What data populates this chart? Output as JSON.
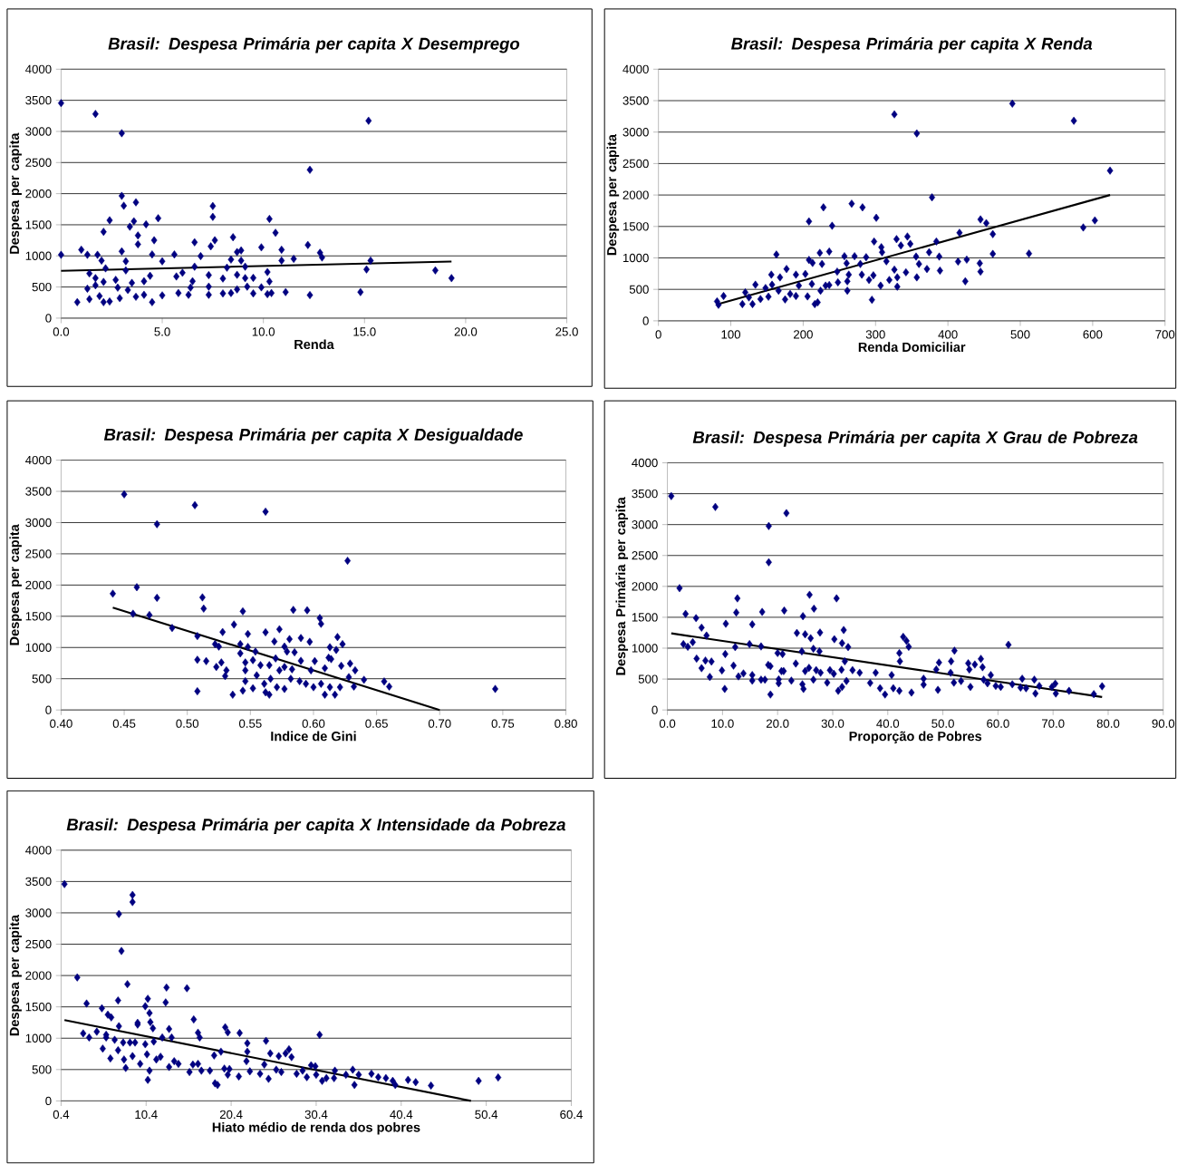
{
  "chart_data": [
    {
      "type": "scatter",
      "title": "Brasil: Despesa Primária per capita X Desemprego",
      "xlabel": "Renda",
      "ylabel": "Despesa per capita",
      "xlim": [
        0,
        25
      ],
      "ylim": [
        0,
        4000
      ],
      "xticks": [
        {
          "value": 0,
          "label": "0.0"
        },
        {
          "value": 5,
          "label": "5.0"
        },
        {
          "value": 10,
          "label": "10.0"
        },
        {
          "value": 15,
          "label": "15.0"
        },
        {
          "value": 20,
          "label": "20.0"
        },
        {
          "value": 25,
          "label": "25.0"
        }
      ],
      "yticks": [
        0,
        500,
        1000,
        1500,
        2000,
        2500,
        3000,
        3500,
        4000
      ],
      "grid": "y",
      "series": [
        {
          "marker": "diamond",
          "color": "#000080",
          "x": [
            0,
            1.7,
            3.0,
            15.2,
            12.3,
            0,
            3.0,
            3.1,
            3.7,
            7.5,
            7.5,
            2.4,
            3.6,
            4.8,
            10.3,
            2.1,
            3.4,
            4.2,
            3.8,
            3.8,
            4.6,
            10.6,
            8.5,
            7.6,
            7.4,
            6.6,
            1.0,
            1.3,
            1.8,
            3.0,
            4.5,
            5.6,
            6.9,
            9.9,
            10.9,
            12.2,
            12.8,
            12.9,
            11.5,
            8.7,
            8.9,
            2.0,
            3.2,
            5.0,
            8.4,
            8.9,
            10.9,
            15.3,
            15.1,
            18.5,
            19.3,
            14.8,
            12.3,
            11.1,
            1.4,
            2.2,
            3.2,
            4.4,
            5.7,
            6.0,
            6.6,
            7.3,
            8.2,
            8.7,
            9.1,
            9.5,
            10.2,
            10.3,
            1.7,
            2.1,
            2.7,
            3.5,
            4.1,
            6.5,
            8.0,
            9.1,
            1.3,
            1.7,
            2.8,
            3.3,
            6.4,
            7.3,
            9.2,
            9.9,
            0.8,
            1.4,
            2.1,
            2.4,
            2.9,
            3.7,
            4.1,
            4.5,
            5.0,
            5.8,
            6.3,
            7.3,
            8.0,
            8.4,
            8.7,
            9.5,
            10.2,
            10.4,
            1.9
          ],
          "values": [
            3455,
            3281,
            2971,
            3172,
            2383,
            1017,
            1964,
            1806,
            1861,
            1801,
            1627,
            1572,
            1556,
            1605,
            1594,
            1387,
            1469,
            1507,
            1328,
            1186,
            1251,
            1371,
            1300,
            1251,
            1153,
            1219,
            1099,
            1017,
            1017,
            1072,
            1023,
            1023,
            996,
            1137,
            1099,
            1175,
            1050,
            974,
            952,
            1061,
            1088,
            925,
            914,
            914,
            941,
            925,
            925,
            925,
            783,
            767,
            642,
            419,
            370,
            419,
            718,
            800,
            767,
            680,
            669,
            729,
            827,
            691,
            811,
            696,
            827,
            647,
            740,
            588,
            642,
            582,
            615,
            566,
            593,
            593,
            637,
            642,
            473,
            528,
            490,
            452,
            490,
            506,
            506,
            495,
            256,
            305,
            256,
            267,
            321,
            343,
            375,
            256,
            365,
            403,
            375,
            375,
            397,
            403,
            462,
            397,
            386,
            403,
            354
          ]
        },
        {
          "type": "line",
          "marker": "none",
          "color": "#000000",
          "x": [
            0,
            19.3
          ],
          "values": [
            760,
            910
          ]
        }
      ]
    },
    {
      "type": "scatter",
      "title": "Brasil: Despesa Primária per capita X Renda",
      "xlabel": "Renda Domiciliar",
      "ylabel": "Despesa per capita",
      "xlim": [
        0,
        700
      ],
      "ylim": [
        0,
        4000
      ],
      "xticks": [
        0,
        100,
        200,
        300,
        400,
        500,
        600,
        700
      ],
      "yticks": [
        0,
        500,
        1000,
        1500,
        2000,
        2500,
        3000,
        3500,
        4000
      ],
      "grid": "y",
      "series": [
        {
          "marker": "diamond",
          "color": "#000080",
          "x": [
            326,
            357,
            489,
            574,
            624,
            378,
            228,
            267,
            282,
            208,
            240,
            301,
            445,
            453,
            462,
            416,
            603,
            587,
            512,
            462,
            163,
            223,
            236,
            257,
            271,
            287,
            308,
            309,
            298,
            329,
            335,
            344,
            348,
            384,
            374,
            356,
            388,
            360,
            414,
            426,
            444,
            445,
            424,
            389,
            371,
            342,
            326,
            315,
            279,
            260,
            226,
            208,
            213,
            247,
            263,
            281,
            297,
            330,
            357,
            330,
            307,
            319,
            291,
            261,
            248,
            231,
            236,
            261,
            295,
            220,
            216,
            203,
            190,
            177,
            168,
            156,
            157,
            134,
            148,
            166,
            182,
            175,
            190,
            206,
            212,
            224,
            120,
            130,
            116,
            141,
            152,
            81,
            83,
            90,
            125,
            194
          ],
          "values": [
            3282,
            2979,
            3452,
            3181,
            2388,
            1963,
            1803,
            1862,
            1803,
            1580,
            1511,
            1638,
            1612,
            1553,
            1378,
            1399,
            1596,
            1484,
            1069,
            1064,
            1053,
            1080,
            1101,
            1027,
            1027,
            1011,
            1170,
            1090,
            1261,
            1298,
            1197,
            1340,
            1223,
            1261,
            1090,
            1021,
            1021,
            904,
            941,
            973,
            915,
            782,
            628,
            798,
            824,
            771,
            814,
            947,
            904,
            915,
            904,
            968,
            920,
            782,
            734,
            734,
            723,
            691,
            691,
            543,
            559,
            649,
            649,
            628,
            612,
            559,
            569,
            479,
            335,
            293,
            266,
            745,
            734,
            824,
            691,
            734,
            574,
            574,
            521,
            479,
            426,
            340,
            394,
            388,
            585,
            479,
            452,
            266,
            266,
            346,
            383,
            309,
            255,
            394,
            372,
            559
          ]
        },
        {
          "type": "line",
          "marker": "none",
          "color": "#000000",
          "x": [
            81,
            624
          ],
          "values": [
            260,
            2000
          ]
        }
      ]
    },
    {
      "type": "scatter",
      "title": "Brasil: Despesa Primária per capita X Desigualdade",
      "xlabel": "Indice de Gini",
      "ylabel": "Despesa per capita",
      "xlim": [
        0.4,
        0.8
      ],
      "ylim": [
        0,
        4000
      ],
      "xticks": [
        {
          "value": 0.4,
          "label": "0.40"
        },
        {
          "value": 0.45,
          "label": "0.45"
        },
        {
          "value": 0.5,
          "label": "0.50"
        },
        {
          "value": 0.55,
          "label": "0.55"
        },
        {
          "value": 0.6,
          "label": "0.60"
        },
        {
          "value": 0.65,
          "label": "0.65"
        },
        {
          "value": 0.7,
          "label": "0.70"
        },
        {
          "value": 0.75,
          "label": "0.75"
        },
        {
          "value": 0.8,
          "label": "0.80"
        }
      ],
      "yticks": [
        0,
        500,
        1000,
        1500,
        2000,
        2500,
        3000,
        3500,
        4000
      ],
      "grid": "y",
      "series": [
        {
          "marker": "diamond",
          "color": "#000080",
          "x": [
            0.45,
            0.506,
            0.476,
            0.562,
            0.627,
            0.441,
            0.46,
            0.476,
            0.457,
            0.47,
            0.488,
            0.512,
            0.513,
            0.544,
            0.584,
            0.595,
            0.605,
            0.606,
            0.508,
            0.528,
            0.537,
            0.548,
            0.562,
            0.573,
            0.581,
            0.59,
            0.597,
            0.619,
            0.623,
            0.613,
            0.618,
            0.522,
            0.525,
            0.542,
            0.542,
            0.548,
            0.554,
            0.569,
            0.577,
            0.585,
            0.579,
            0.508,
            0.515,
            0.523,
            0.527,
            0.531,
            0.53,
            0.546,
            0.552,
            0.558,
            0.565,
            0.57,
            0.577,
            0.583,
            0.59,
            0.601,
            0.612,
            0.614,
            0.622,
            0.629,
            0.633,
            0.609,
            0.598,
            0.573,
            0.566,
            0.555,
            0.546,
            0.546,
            0.561,
            0.571,
            0.577,
            0.582,
            0.589,
            0.594,
            0.6,
            0.606,
            0.613,
            0.609,
            0.617,
            0.621,
            0.628,
            0.632,
            0.64,
            0.656,
            0.66,
            0.508,
            0.536,
            0.544,
            0.552,
            0.562,
            0.565,
            0.744
          ],
          "values": [
            3452,
            3278,
            2974,
            3175,
            2388,
            1862,
            1965,
            1796,
            1541,
            1520,
            1313,
            1802,
            1623,
            1579,
            1601,
            1596,
            1471,
            1379,
            1183,
            1248,
            1368,
            1216,
            1243,
            1292,
            1134,
            1151,
            1091,
            1167,
            1053,
            1004,
            961,
            1053,
            1015,
            1053,
            906,
            1009,
            934,
            1096,
            1015,
            923,
            934,
            803,
            782,
            689,
            760,
            635,
            543,
            760,
            798,
            716,
            716,
            825,
            689,
            651,
            787,
            782,
            836,
            814,
            706,
            743,
            635,
            668,
            635,
            635,
            499,
            554,
            635,
            461,
            418,
            364,
            337,
            499,
            461,
            418,
            364,
            418,
            364,
            244,
            244,
            364,
            526,
            374,
            483,
            456,
            374,
            299,
            244,
            309,
            347,
            282,
            244,
            337
          ]
        },
        {
          "type": "line",
          "marker": "none",
          "color": "#000000",
          "x": [
            0.441,
            0.7
          ],
          "values": [
            1640,
            0
          ]
        }
      ]
    },
    {
      "type": "scatter",
      "title": "Brasil: Despesa Primária per capita X Grau de Pobreza",
      "xlabel": "Proporção de Pobres",
      "ylabel": "Despesa Primária per capita",
      "xlim": [
        0,
        90
      ],
      "ylim": [
        0,
        4000
      ],
      "xticks": [
        {
          "value": 0,
          "label": "0.0"
        },
        {
          "value": 10,
          "label": "10.0"
        },
        {
          "value": 20,
          "label": "20.0"
        },
        {
          "value": 30,
          "label": "30.0"
        },
        {
          "value": 40,
          "label": "40.0"
        },
        {
          "value": 50,
          "label": "50.0"
        },
        {
          "value": 60,
          "label": "60.0"
        },
        {
          "value": 70,
          "label": "70.0"
        },
        {
          "value": 80,
          "label": "80.0"
        },
        {
          "value": 90,
          "label": "90.0"
        }
      ],
      "yticks": [
        0,
        500,
        1000,
        1500,
        2000,
        2500,
        3000,
        3500,
        4000
      ],
      "grid": "y",
      "series": [
        {
          "marker": "diamond",
          "color": "#000080",
          "x": [
            0.7,
            8.7,
            18.4,
            21.6,
            18.4,
            2.2,
            3.3,
            5.2,
            6.2,
            7.1,
            2.9,
            3.7,
            4.6,
            5.3,
            6.2,
            6.9,
            8.0,
            7.7,
            10.6,
            10.5,
            9.9,
            10.4,
            12.0,
            12.3,
            12.5,
            12.7,
            12.9,
            13.8,
            14.9,
            15.4,
            15.4,
            15.4,
            17.0,
            17.2,
            17.0,
            17.7,
            18.3,
            18.7,
            18.7,
            20.0,
            20.9,
            21.2,
            20.2,
            20.2,
            20.7,
            21.1,
            22.5,
            23.5,
            23.3,
            24.6,
            24.4,
            25.0,
            25.8,
            26.0,
            26.6,
            26.5,
            27.7,
            27.6,
            24.7,
            24.5,
            25.0,
            25.7,
            26.5,
            27.0,
            27.8,
            29.0,
            29.5,
            30.2,
            30.3,
            30.7,
            31.0,
            31.7,
            31.6,
            31.7,
            32.0,
            32.2,
            32.5,
            32.8,
            33.6,
            34.9,
            36.8,
            37.8,
            38.6,
            39.5,
            40.7,
            41.0,
            42.1,
            42.1,
            42.2,
            42.8,
            43.4,
            43.8,
            44.3,
            46.5,
            46.5,
            48.8,
            49.3,
            49.1,
            51.5,
            51.4,
            52.1,
            52.0,
            53.3,
            54.6,
            55.0,
            54.8,
            55.8,
            56.9,
            57.2,
            57.4,
            58.1,
            58.7,
            59.6,
            60.5,
            61.9,
            62.6,
            64.1,
            64.4,
            65.1,
            66.6,
            66.8,
            67.5,
            69.8,
            70.4,
            70.5,
            72.9,
            77.4,
            78.9
          ],
          "values": [
            3462,
            3286,
            2977,
            3185,
            2391,
            1971,
            1555,
            1486,
            1332,
            1204,
            1065,
            1023,
            1097,
            831,
            676,
            799,
            783,
            533,
            1395,
            905,
            639,
            341,
            719,
            1017,
            1577,
            1806,
            543,
            591,
            1065,
            1385,
            565,
            474,
            1028,
            1587,
            490,
            490,
            730,
            708,
            250,
            921,
            905,
            1609,
            495,
            431,
            629,
            629,
            474,
            1246,
            751,
            1518,
            948,
            1225,
            1864,
            1161,
            1640,
            991,
            1252,
            948,
            341,
            415,
            629,
            682,
            490,
            644,
            602,
            442,
            644,
            586,
            1145,
            1806,
            309,
            373,
            650,
            1081,
            1294,
            788,
            469,
            1017,
            644,
            602,
            437,
            602,
            352,
            250,
            565,
            352,
            309,
            921,
            788,
            1182,
            1118,
            1023,
            282,
            506,
            410,
            655,
            767,
            325,
            788,
            602,
            959,
            442,
            469,
            756,
            373,
            655,
            735,
            826,
            692,
            490,
            431,
            565,
            389,
            373,
            1055,
            415,
            362,
            506,
            352,
            490,
            266,
            389,
            373,
            426,
            266,
            309,
            256,
            383
          ]
        },
        {
          "type": "line",
          "marker": "none",
          "color": "#000000",
          "x": [
            0.7,
            78.9
          ],
          "values": [
            1240,
            210
          ]
        }
      ]
    },
    {
      "type": "scatter",
      "title": "Brasil: Despesa Primária per capita X Intensidade da Pobreza",
      "xlabel": "Hiato médio de renda dos pobres",
      "ylabel": "Despesa per capita",
      "xlim": [
        0.4,
        60.4
      ],
      "ylim": [
        0,
        4000
      ],
      "xticks": [
        0.4,
        10.4,
        20.4,
        30.4,
        40.4,
        50.4,
        60.4
      ],
      "yticks": [
        0,
        500,
        1000,
        1500,
        2000,
        2500,
        3000,
        3500,
        4000
      ],
      "grid": "y",
      "series": [
        {
          "marker": "diamond",
          "color": "#000080",
          "x": [
            0.8,
            8.8,
            8.8,
            7.2,
            7.5,
            2.3,
            8.2,
            12.8,
            15.2,
            3.4,
            7.1,
            10.6,
            12.7,
            10.3,
            5.2,
            5.9,
            6.3,
            10.8,
            10.9,
            11.2,
            9.4,
            9.4,
            7.2,
            13.1,
            13.4,
            16.0,
            16.5,
            16.7,
            19.7,
            20.0,
            21.4,
            3.0,
            3.7,
            4.6,
            5.7,
            5.7,
            6.7,
            5.3,
            6.2,
            7.1,
            7.7,
            7.8,
            8.0,
            8.5,
            9.1,
            8.8,
            9.7,
            10.3,
            10.5,
            10.8,
            10.6,
            11.3,
            11.6,
            12.1,
            12.3,
            13.1,
            13.7,
            14.2,
            15.5,
            15.9,
            16.5,
            16.9,
            17.9,
            18.4,
            19.2,
            18.5,
            18.8,
            19.6,
            20.0,
            20.2,
            21.3,
            22.3,
            22.3,
            22.2,
            22.6,
            23.8,
            24.3,
            24.5,
            24.8,
            25.0,
            25.7,
            26.0,
            26.3,
            26.8,
            27.2,
            27.5,
            28.1,
            28.8,
            29.3,
            29.8,
            30.3,
            30.8,
            30.4,
            31.1,
            31.6,
            32.5,
            32.6,
            33.9,
            34.7,
            34.9,
            35.4,
            36.9,
            37.7,
            38.6,
            39.4,
            39.7,
            41.2,
            42.1,
            43.9,
            49.5,
            51.8
          ],
          "values": [
            3459,
            3286,
            3172,
            2982,
            2392,
            1970,
            1862,
            1808,
            1797,
            1553,
            1602,
            1629,
            1570,
            1510,
            1478,
            1375,
            1332,
            1402,
            1256,
            1158,
            1245,
            1218,
            1191,
            1147,
            1012,
            1299,
            1088,
            1012,
            1175,
            1093,
            1083,
            1077,
            1012,
            1104,
            1055,
            1012,
            974,
            834,
            677,
            807,
            931,
            660,
            525,
            931,
            931,
            714,
            590,
            904,
            742,
            482,
            336,
            947,
            660,
            704,
            1012,
            541,
            633,
            590,
            460,
            579,
            590,
            482,
            482,
            725,
            785,
            281,
            254,
            514,
            417,
            509,
            390,
            920,
            785,
            633,
            471,
            433,
            579,
            958,
            352,
            758,
            498,
            714,
            460,
            758,
            823,
            698,
            433,
            482,
            379,
            568,
            552,
            1055,
            417,
            319,
            363,
            363,
            482,
            417,
            498,
            254,
            417,
            433,
            379,
            363,
            319,
            254,
            336,
            298,
            244,
            319,
            373
          ]
        },
        {
          "type": "line",
          "marker": "none",
          "color": "#000000",
          "x": [
            0.8,
            48.6
          ],
          "values": [
            1290,
            0
          ]
        }
      ]
    }
  ]
}
